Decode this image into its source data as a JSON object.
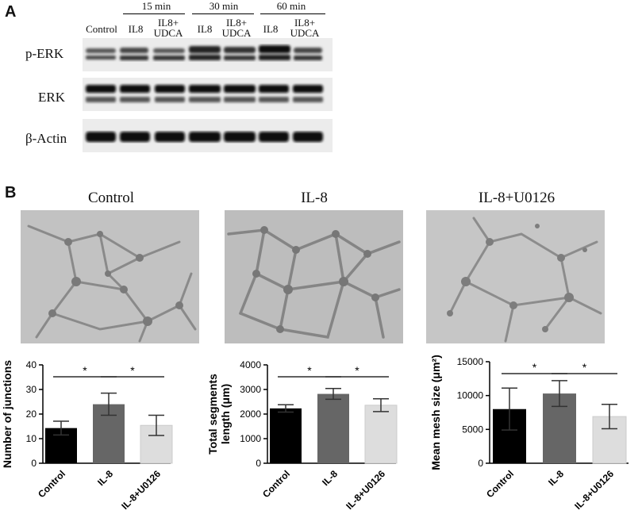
{
  "panelA": {
    "letter": "A",
    "time_groups": [
      "15 min",
      "30 min",
      "60 min"
    ],
    "lanes": [
      "Control",
      "IL8",
      "IL8+\nUDCA",
      "IL8",
      "IL8+\nUDCA",
      "IL8",
      "IL8+\nUDCA"
    ],
    "rows": [
      "p-ERK",
      "ERK",
      "β-Actin"
    ]
  },
  "panelB": {
    "letter": "B",
    "image_titles": [
      "Control",
      "IL-8",
      "IL-8+U0126"
    ]
  },
  "chart_data": [
    {
      "type": "bar",
      "categories": [
        "Control",
        "IL-8",
        "IL-8+U0126"
      ],
      "values": [
        14.3,
        24.0,
        15.4
      ],
      "errors": [
        2.8,
        4.5,
        4.1
      ],
      "colors": [
        "#000000",
        "#666666",
        "#dddddd"
      ],
      "ylabel": "Number of junctions",
      "ylim": [
        0,
        40
      ],
      "yticks": [
        0,
        10,
        20,
        30,
        40
      ],
      "significance": [
        {
          "from": 0,
          "to": 1,
          "label": "*"
        },
        {
          "from": 1,
          "to": 2,
          "label": "*"
        }
      ]
    },
    {
      "type": "bar",
      "categories": [
        "Control",
        "IL-8",
        "IL-8+U0126"
      ],
      "values": [
        2230,
        2820,
        2360
      ],
      "errors": [
        150,
        220,
        260
      ],
      "colors": [
        "#000000",
        "#666666",
        "#dddddd"
      ],
      "ylabel": "Total segments\nlength (μm)",
      "ylim": [
        0,
        4000
      ],
      "yticks": [
        0,
        1000,
        2000,
        3000,
        4000
      ],
      "significance": [
        {
          "from": 0,
          "to": 1,
          "label": "*"
        },
        {
          "from": 1,
          "to": 2,
          "label": "*"
        }
      ]
    },
    {
      "type": "bar",
      "categories": [
        "Control",
        "IL-8",
        "IL-8+U0126"
      ],
      "values": [
        8000,
        10300,
        6900
      ],
      "errors": [
        3100,
        1900,
        1800
      ],
      "colors": [
        "#000000",
        "#666666",
        "#dddddd"
      ],
      "ylabel": "Mean mesh size (μm²)",
      "ylim": [
        0,
        15000
      ],
      "yticks": [
        0,
        5000,
        10000,
        15000
      ],
      "significance": [
        {
          "from": 0,
          "to": 1,
          "label": "*"
        },
        {
          "from": 1,
          "to": 2,
          "label": "*"
        }
      ]
    }
  ]
}
